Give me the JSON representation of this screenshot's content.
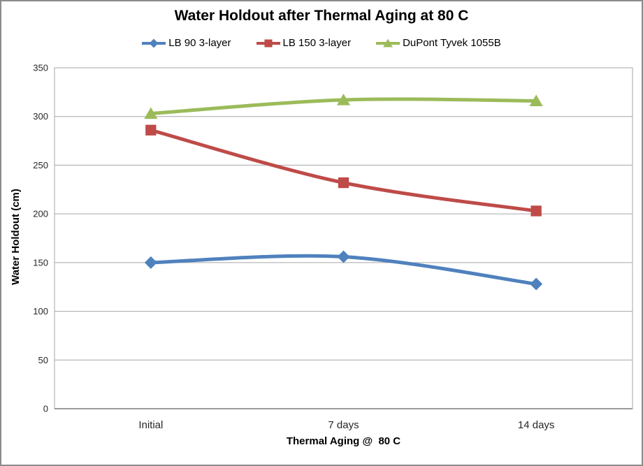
{
  "chart_data": {
    "type": "line",
    "title": "Water Holdout after Thermal Aging at 80 C",
    "categories": [
      "Initial",
      "7 days",
      "14 days"
    ],
    "series": [
      {
        "name": "LB 90 3-layer",
        "values": [
          150,
          156,
          128
        ],
        "color": "#4F81BD",
        "marker": "diamond"
      },
      {
        "name": "LB 150 3-layer",
        "values": [
          286,
          232,
          203
        ],
        "color": "#BE4B48",
        "marker": "square"
      },
      {
        "name": "DuPont Tyvek 1055B",
        "values": [
          303,
          317,
          316
        ],
        "color": "#9BBB59",
        "marker": "triangle"
      }
    ],
    "xlabel": "Thermal Aging @  80 C",
    "ylabel": "Water Holdout (cm)",
    "ylim": [
      0,
      350
    ],
    "ytick_step": 50,
    "grid": true,
    "legend_position": "top",
    "line_smoothing": true,
    "colors": {
      "gridline": "#A6A6A6",
      "axis_line": "#9B9B9B",
      "tick_text": "#262626",
      "background": "#FFFFFF",
      "border": "#8C8C8C"
    }
  }
}
